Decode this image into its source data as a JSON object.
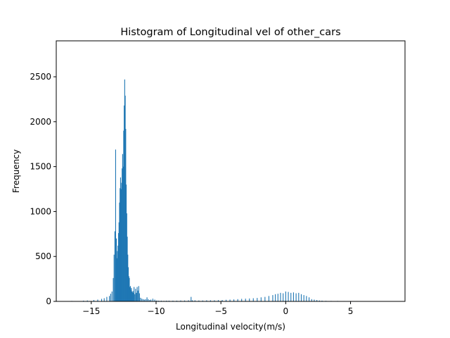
{
  "chart_data": {
    "type": "bar",
    "title": "Histogram of Longitudinal vel of other_cars",
    "xlabel": "Longitudinal velocity(m/s)",
    "ylabel": "Frequency",
    "xlim": [
      -17.7,
      9.2
    ],
    "ylim": [
      0,
      2900
    ],
    "xticks": [
      -15,
      -10,
      -5,
      0,
      5
    ],
    "xtick_labels": [
      "−15",
      "−10",
      "−5",
      "0",
      "5"
    ],
    "yticks": [
      0,
      500,
      1000,
      1500,
      2000,
      2500
    ],
    "ytick_labels": [
      "0",
      "500",
      "1000",
      "1500",
      "2000",
      "2500"
    ],
    "grid": false,
    "bar_color": "#1f77b4",
    "bin_width": 0.06,
    "series": [
      {
        "x": [
          -16.5,
          -15.6,
          -15.3,
          -14.8,
          -14.5,
          -14.2,
          -14.0,
          -13.8,
          -13.6,
          -13.5,
          -13.4,
          -13.3,
          -13.24,
          -13.18,
          -13.12,
          -13.06,
          -13.02,
          -12.98,
          -12.94,
          -12.9,
          -12.86,
          -12.82,
          -12.78,
          -12.74,
          -12.7,
          -12.66,
          -12.62,
          -12.58,
          -12.54,
          -12.5,
          -12.46,
          -12.42,
          -12.38,
          -12.34,
          -12.3,
          -12.26,
          -12.22,
          -12.18,
          -12.14,
          -12.1,
          -12.06,
          -12.02,
          -11.98,
          -11.94,
          -11.9,
          -11.86,
          -11.82,
          -11.78,
          -11.74,
          -11.7,
          -11.64,
          -11.58,
          -11.52,
          -11.46,
          -11.4,
          -11.34,
          -11.28,
          -11.2,
          -11.1,
          -11.0,
          -10.9,
          -10.8,
          -10.7,
          -10.6,
          -10.5,
          -10.4,
          -10.25,
          -10.1,
          -9.95,
          -9.8,
          -9.6,
          -9.4,
          -9.2,
          -9.0,
          -8.7,
          -8.4,
          -8.1,
          -7.8,
          -7.5,
          -7.3,
          -7.2,
          -7.0,
          -6.7,
          -6.4,
          -6.1,
          -5.8,
          -5.5,
          -5.2,
          -4.9,
          -4.6,
          -4.3,
          -4.0,
          -3.7,
          -3.4,
          -3.1,
          -2.8,
          -2.5,
          -2.2,
          -1.9,
          -1.6,
          -1.3,
          -1.0,
          -0.8,
          -0.6,
          -0.4,
          -0.2,
          0.0,
          0.2,
          0.4,
          0.6,
          0.8,
          1.0,
          1.2,
          1.4,
          1.6,
          1.8,
          2.0,
          2.2,
          2.4,
          2.6,
          2.8,
          3.1,
          3.5,
          4.0,
          4.5,
          5.0,
          5.5,
          6.0,
          6.5,
          7.0,
          7.6
        ],
        "y": [
          5,
          8,
          10,
          15,
          20,
          28,
          35,
          50,
          60,
          85,
          110,
          260,
          520,
          780,
          1690,
          700,
          480,
          560,
          620,
          760,
          880,
          1100,
          1260,
          1380,
          1250,
          1320,
          1480,
          1640,
          1500,
          1900,
          2180,
          2470,
          2290,
          1920,
          1300,
          980,
          720,
          520,
          380,
          280,
          260,
          160,
          170,
          130,
          150,
          110,
          100,
          115,
          95,
          160,
          80,
          140,
          95,
          160,
          120,
          170,
          90,
          40,
          30,
          25,
          20,
          25,
          45,
          25,
          15,
          20,
          30,
          20,
          10,
          8,
          8,
          6,
          8,
          8,
          8,
          8,
          10,
          10,
          12,
          50,
          12,
          12,
          10,
          10,
          12,
          12,
          12,
          14,
          15,
          18,
          20,
          22,
          25,
          28,
          30,
          32,
          35,
          38,
          45,
          50,
          60,
          70,
          80,
          85,
          95,
          90,
          110,
          105,
          95,
          100,
          90,
          95,
          80,
          70,
          60,
          45,
          25,
          20,
          15,
          10,
          8,
          6,
          5,
          5,
          4,
          4,
          4,
          3,
          3,
          3,
          2
        ]
      }
    ]
  }
}
